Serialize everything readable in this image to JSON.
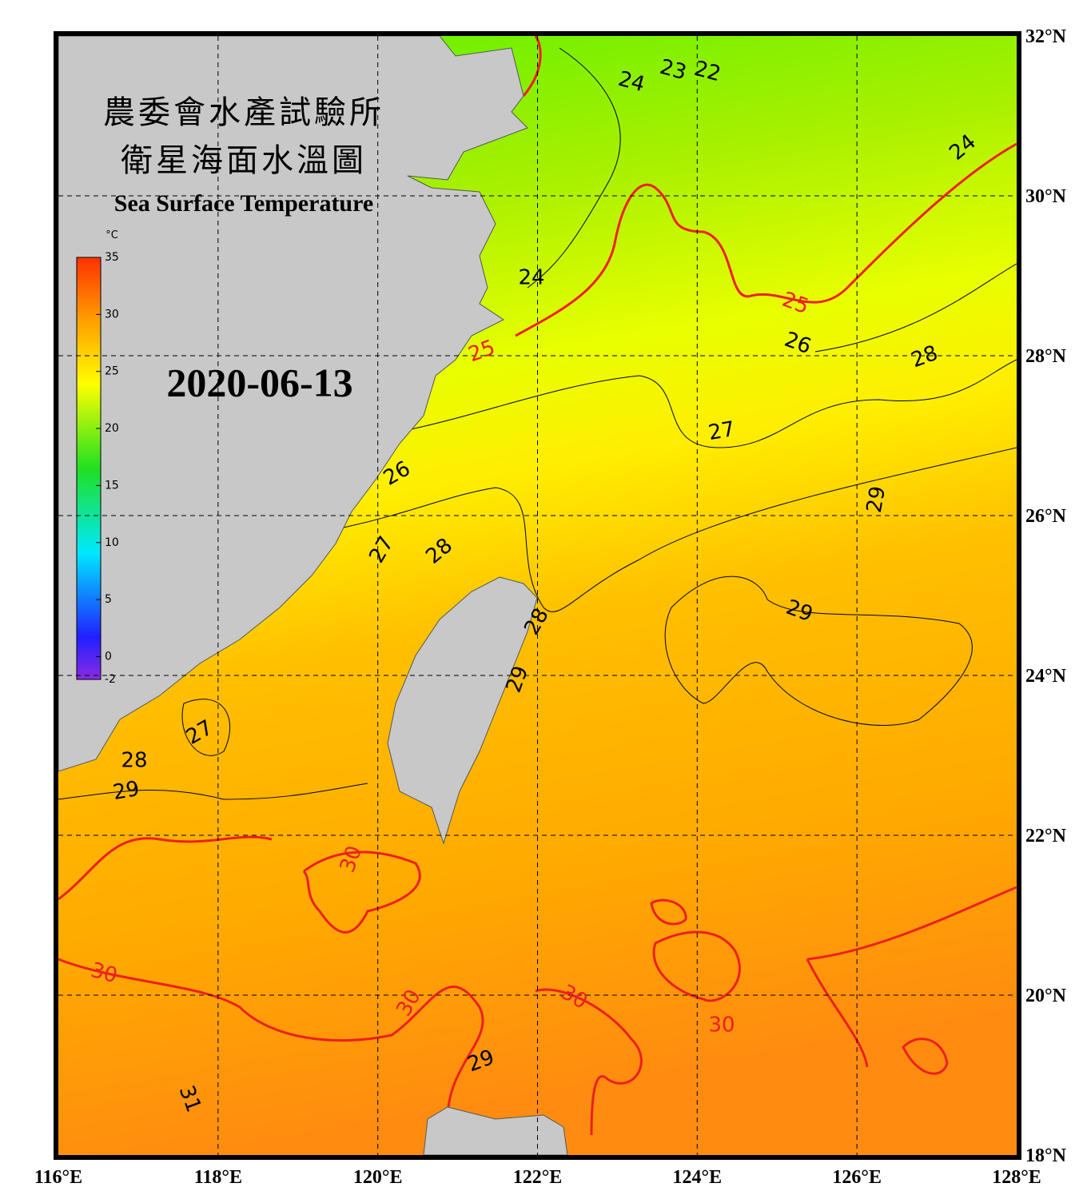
{
  "header": {
    "title_zh_line1": "農委會水產試驗所",
    "title_zh_line2": "衛星海面水溫圖",
    "title_en": "Sea Surface Temperature",
    "date": "2020-06-13"
  },
  "colorbar": {
    "unit": "°C",
    "range": [
      -2,
      35
    ],
    "ticks": [
      35,
      30,
      25,
      20,
      15,
      10,
      5,
      0,
      -2
    ]
  },
  "map": {
    "lon_range": [
      116,
      128
    ],
    "lat_range": [
      18,
      32
    ],
    "lon_ticks": [
      {
        "value": 116,
        "label": "116°E"
      },
      {
        "value": 118,
        "label": "118°E"
      },
      {
        "value": 120,
        "label": "120°E"
      },
      {
        "value": 122,
        "label": "122°E"
      },
      {
        "value": 124,
        "label": "124°E"
      },
      {
        "value": 126,
        "label": "126°E"
      },
      {
        "value": 128,
        "label": "128°E"
      }
    ],
    "lat_ticks": [
      {
        "value": 18,
        "label": "18°N"
      },
      {
        "value": 20,
        "label": "20°N"
      },
      {
        "value": 22,
        "label": "22°N"
      },
      {
        "value": 24,
        "label": "24°N"
      },
      {
        "value": 26,
        "label": "26°N"
      },
      {
        "value": 28,
        "label": "28°N"
      },
      {
        "value": 30,
        "label": "30°N"
      },
      {
        "value": 32,
        "label": "32°N"
      }
    ],
    "contour_labels": [
      24,
      23,
      22,
      24,
      24,
      25,
      25,
      26,
      28,
      27,
      26,
      29,
      27,
      28,
      28,
      29,
      27,
      28,
      29,
      30,
      30,
      30,
      30,
      30,
      29,
      31,
      29
    ]
  }
}
